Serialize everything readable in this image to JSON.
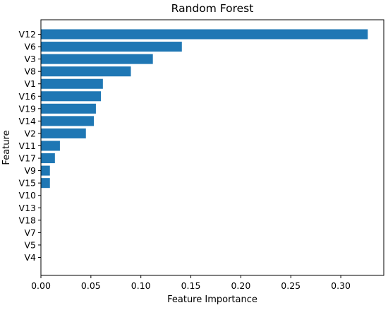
{
  "chart_data": {
    "type": "bar",
    "orientation": "horizontal",
    "title": "Random Forest",
    "xlabel": "Feature Importance",
    "ylabel": "Feature",
    "xlim": [
      0.0,
      0.343
    ],
    "xticks": [
      "0.00",
      "0.05",
      "0.10",
      "0.15",
      "0.20",
      "0.25",
      "0.30"
    ],
    "xtick_values": [
      0.0,
      0.05,
      0.1,
      0.15,
      0.2,
      0.25,
      0.3
    ],
    "categories": [
      "V12",
      "V6",
      "V3",
      "V8",
      "V1",
      "V16",
      "V19",
      "V14",
      "V2",
      "V11",
      "V17",
      "V9",
      "V15",
      "V10",
      "V13",
      "V18",
      "V7",
      "V5",
      "V4"
    ],
    "values": [
      0.327,
      0.141,
      0.112,
      0.09,
      0.062,
      0.06,
      0.055,
      0.053,
      0.045,
      0.019,
      0.014,
      0.009,
      0.009,
      0.0,
      0.0,
      0.0,
      0.0,
      0.0,
      0.0
    ],
    "bar_color": "#1f77b4",
    "grid": false,
    "legend": false
  }
}
